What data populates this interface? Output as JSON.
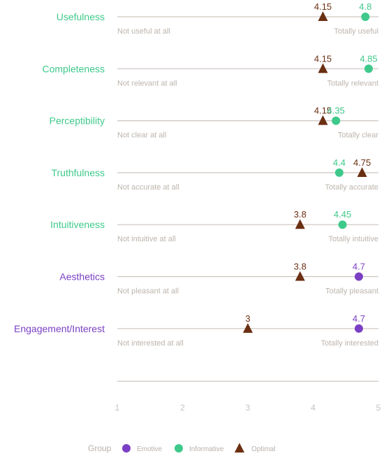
{
  "chart_data": {
    "type": "scatter",
    "x_ticks": [
      1,
      2,
      3,
      4,
      5
    ],
    "xlim": [
      1,
      5
    ],
    "legend": {
      "title": "Group",
      "items": [
        {
          "name": "Emotive",
          "shape": "circle",
          "color": "#7b3fc4"
        },
        {
          "name": "Informative",
          "shape": "circle",
          "color": "#3ec98a"
        },
        {
          "name": "Optimal",
          "shape": "triangle",
          "color": "#6b2f12"
        }
      ],
      "placement": "bottom"
    },
    "rows": [
      {
        "label": "Usefulness",
        "group": "Informative",
        "low": "Not useful at all",
        "high": "Totally useful",
        "value": 4.8,
        "optimal": 4.15
      },
      {
        "label": "Completeness",
        "group": "Informative",
        "low": "Not relevant at all",
        "high": "Totally relevant",
        "value": 4.85,
        "optimal": 4.15
      },
      {
        "label": "Perceptibility",
        "group": "Informative",
        "low": "Not clear at all",
        "high": "Totally clear",
        "value": 4.35,
        "optimal": 4.15
      },
      {
        "label": "Truthfulness",
        "group": "Informative",
        "low": "Not accurate at all",
        "high": "Totally accurate",
        "value": 4.4,
        "optimal": 4.75
      },
      {
        "label": "Intuitiveness",
        "group": "Informative",
        "low": "Not intuitive at all",
        "high": "Totally intuitive",
        "value": 4.45,
        "optimal": 3.8
      },
      {
        "label": "Aesthetics",
        "group": "Emotive",
        "low": "Not pleasant at all",
        "high": "Totally pleasant",
        "value": 4.7,
        "optimal": 3.8
      },
      {
        "label": "Engagement/Interest",
        "group": "Emotive",
        "low": "Not interested at all",
        "high": "Totally interested",
        "value": 4.7,
        "optimal": 3
      }
    ]
  }
}
